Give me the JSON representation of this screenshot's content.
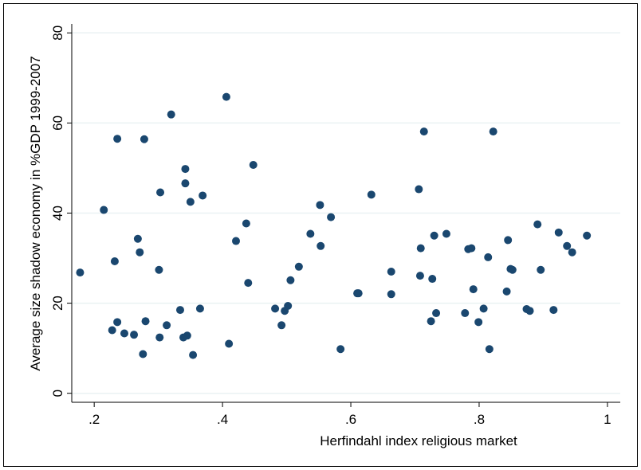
{
  "chart_data": {
    "type": "scatter",
    "x_label": "Herfindahl index religious market",
    "y_label": "Average size shadow economy in %GDP 1999-2007",
    "color": "#1a476f",
    "grid": true,
    "xlim": [
      0.165,
      1.02
    ],
    "ylim": [
      -2,
      82
    ],
    "xticks": [
      {
        "value": 0.2,
        "label": ".2"
      },
      {
        "value": 0.4,
        "label": ".4"
      },
      {
        "value": 0.6,
        "label": ".6"
      },
      {
        "value": 0.8,
        "label": ".8"
      },
      1
    ],
    "yticks": [
      0,
      20,
      40,
      60,
      80
    ],
    "x": [
      0.178,
      0.215,
      0.236,
      0.232,
      0.228,
      0.236,
      0.247,
      0.262,
      0.268,
      0.271,
      0.276,
      0.278,
      0.28,
      0.301,
      0.303,
      0.302,
      0.313,
      0.32,
      0.334,
      0.339,
      0.342,
      0.342,
      0.345,
      0.35,
      0.354,
      0.365,
      0.369,
      0.406,
      0.41,
      0.421,
      0.437,
      0.44,
      0.448,
      0.482,
      0.492,
      0.497,
      0.502,
      0.506,
      0.519,
      0.537,
      0.552,
      0.553,
      0.569,
      0.584,
      0.61,
      0.612,
      0.632,
      0.663,
      0.663,
      0.706,
      0.714,
      0.709,
      0.708,
      0.725,
      0.727,
      0.73,
      0.733,
      0.749,
      0.778,
      0.783,
      0.788,
      0.791,
      0.799,
      0.807,
      0.814,
      0.816,
      0.822,
      0.843,
      0.845,
      0.849,
      0.852,
      0.874,
      0.879,
      0.891,
      0.896,
      0.916,
      0.924,
      0.937,
      0.945,
      0.968
    ],
    "values": [
      26.8,
      40.7,
      56.5,
      29.3,
      14.0,
      15.8,
      13.3,
      13.0,
      34.3,
      31.3,
      8.7,
      56.4,
      16.0,
      27.4,
      44.6,
      12.4,
      15.1,
      61.9,
      18.5,
      12.4,
      49.8,
      46.6,
      12.8,
      42.5,
      8.5,
      18.8,
      43.9,
      65.8,
      11.0,
      33.8,
      37.7,
      24.5,
      50.7,
      18.8,
      15.1,
      18.3,
      19.4,
      25.1,
      28.1,
      35.4,
      41.8,
      32.7,
      39.1,
      9.8,
      22.2,
      22.2,
      44.1,
      27.0,
      22.0,
      45.3,
      58.1,
      32.2,
      26.1,
      16.0,
      25.4,
      35.0,
      17.8,
      35.4,
      17.8,
      32.0,
      32.2,
      23.1,
      15.8,
      18.8,
      30.2,
      9.8,
      58.1,
      22.6,
      34.0,
      27.6,
      27.4,
      18.7,
      18.3,
      37.5,
      27.4,
      18.5,
      35.7,
      32.7,
      31.3,
      35.0
    ]
  }
}
